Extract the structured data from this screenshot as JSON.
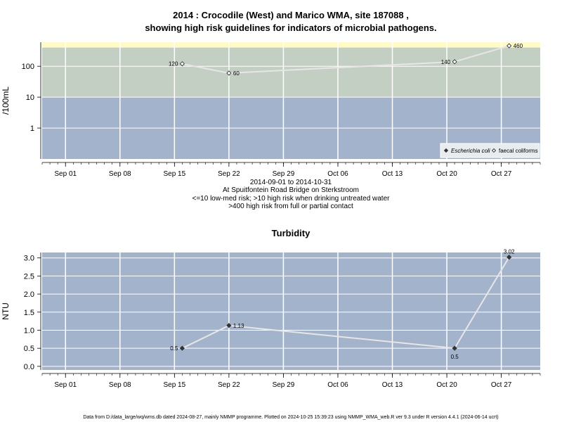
{
  "title_line1": "2014 : Crocodile (West) and Marico WMA, site 187088 ,",
  "title_line2": "showing high risk guidelines for indicators of microbial pathogens.",
  "subtitle_lines": [
    "2014-09-01 to 2014-10-31",
    "At Spuitfontein Road Bridge on Sterkstroom",
    "<=10 low-med risk; >10 high risk when drinking untreated water",
    ">400 high risk from full or partial contact"
  ],
  "footer": "Data from D:/data_large/wq/wms.db dated 2024-08-27, mainly NMMP programme. Plotted on 2024-10-25 15:39:23 using NMMP_WMA_web.R ver 9.3 under R version 4.4.1 (2024-06-14 ucrt)",
  "colors": {
    "low_band": "#a3b3cc",
    "mid_band": "#c4cfc4",
    "high_band": "#fffbc8",
    "line": "#e6e6e6",
    "grid": "#ffffff"
  },
  "chart_data": [
    {
      "type": "line",
      "title": "",
      "xlabel": "",
      "ylabel": "/100mL",
      "y_scale": "log",
      "xlim": [
        "2014-08-29",
        "2014-11-01"
      ],
      "ylim": [
        0.1,
        600
      ],
      "x_ticks": [
        "Sep 01",
        "Sep 08",
        "Sep 15",
        "Sep 22",
        "Sep 29",
        "Oct 06",
        "Oct 13",
        "Oct 20",
        "Oct 27"
      ],
      "x_tick_dates": [
        "2014-09-01",
        "2014-09-08",
        "2014-09-15",
        "2014-09-22",
        "2014-09-29",
        "2014-10-06",
        "2014-10-13",
        "2014-10-20",
        "2014-10-27"
      ],
      "y_ticks": [
        1,
        10,
        100
      ],
      "y_tick_labels": [
        "1",
        "10",
        "100"
      ],
      "bands": [
        {
          "from": 0.1,
          "to": 10,
          "color_key": "low_band"
        },
        {
          "from": 10,
          "to": 400,
          "color_key": "mid_band"
        },
        {
          "from": 400,
          "to": 600,
          "color_key": "high_band"
        }
      ],
      "legend": {
        "placement": "bottom-right"
      },
      "series": [
        {
          "name": "Escherichia coli",
          "marker": "filled-diamond",
          "points": []
        },
        {
          "name": "faecal coliforms",
          "marker": "open-diamond",
          "points": [
            {
              "x": "2014-09-16",
              "y": 120,
              "label": "120",
              "label_side": "left"
            },
            {
              "x": "2014-09-22",
              "y": 60,
              "label": "60",
              "label_side": "right"
            },
            {
              "x": "2014-10-21",
              "y": 140,
              "label": "140",
              "label_side": "left"
            },
            {
              "x": "2014-10-28",
              "y": 460,
              "label": "460",
              "label_side": "right"
            }
          ]
        }
      ]
    },
    {
      "type": "line",
      "title": "Turbidity",
      "xlabel": "",
      "ylabel": "NTU",
      "y_scale": "linear",
      "xlim": [
        "2014-08-29",
        "2014-11-01"
      ],
      "ylim": [
        -0.1,
        3.15
      ],
      "x_ticks": [
        "Sep 01",
        "Sep 08",
        "Sep 15",
        "Sep 22",
        "Sep 29",
        "Oct 06",
        "Oct 13",
        "Oct 20",
        "Oct 27"
      ],
      "x_tick_dates": [
        "2014-09-01",
        "2014-09-08",
        "2014-09-15",
        "2014-09-22",
        "2014-09-29",
        "2014-10-06",
        "2014-10-13",
        "2014-10-20",
        "2014-10-27"
      ],
      "y_ticks": [
        0,
        0.5,
        1,
        1.5,
        2,
        2.5,
        3
      ],
      "y_tick_labels": [
        "0.0",
        "0.5",
        "1.0",
        "1.5",
        "2.0",
        "2.5",
        "3.0"
      ],
      "series": [
        {
          "name": "",
          "marker": "filled-diamond",
          "points": [
            {
              "x": "2014-09-16",
              "y": 0.5,
              "label": "0.5",
              "label_side": "left"
            },
            {
              "x": "2014-09-22",
              "y": 1.13,
              "label": "1.13",
              "label_side": "right"
            },
            {
              "x": "2014-10-21",
              "y": 0.5,
              "label": "0.5",
              "label_side": "below"
            },
            {
              "x": "2014-10-28",
              "y": 3.02,
              "label": "3.02",
              "label_side": "above"
            }
          ]
        }
      ]
    }
  ]
}
